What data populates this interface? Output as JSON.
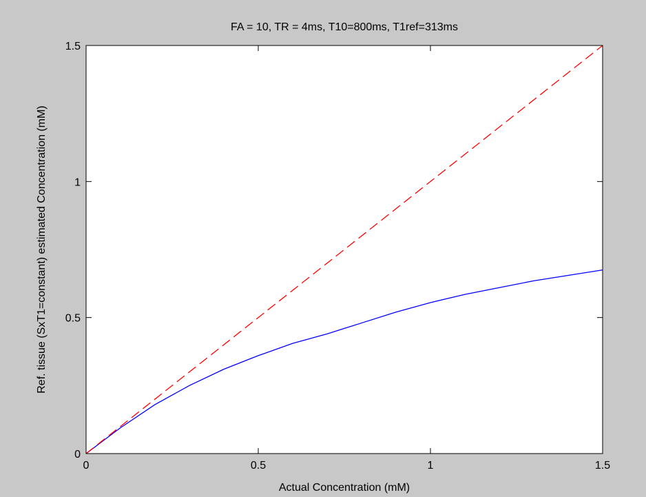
{
  "figure": {
    "background": "#c8c8c8",
    "axes_background": "#ffffff"
  },
  "chart_data": {
    "type": "line",
    "title": "FA = 10, TR = 4ms, T10=800ms, T1ref=313ms",
    "xlabel": "Actual Concentration (mM)",
    "ylabel": "Ref. tissue (SxT1=constant) estimated Concentration (mM)",
    "xlim": [
      0,
      1.5
    ],
    "ylim": [
      0,
      1.5
    ],
    "xticks": [
      0,
      0.5,
      1,
      1.5
    ],
    "xtick_labels": [
      "0",
      "0.5",
      "1",
      "1.5"
    ],
    "yticks": [
      0,
      0.5,
      1,
      1.5
    ],
    "ytick_labels": [
      "0",
      "0.5",
      "1",
      "1.5"
    ],
    "grid": false,
    "legend": "none",
    "series": [
      {
        "color": "#0000ff",
        "style": "solid",
        "x": [
          0,
          0.1,
          0.2,
          0.3,
          0.4,
          0.5,
          0.6,
          0.7,
          0.8,
          0.9,
          1.0,
          1.1,
          1.2,
          1.3,
          1.4,
          1.5
        ],
        "y": [
          0,
          0.095,
          0.18,
          0.25,
          0.31,
          0.36,
          0.405,
          0.44,
          0.48,
          0.52,
          0.555,
          0.585,
          0.61,
          0.635,
          0.655,
          0.675
        ]
      },
      {
        "color": "#ff0000",
        "style": "dashed",
        "x": [
          0,
          1.5
        ],
        "y": [
          0,
          1.5
        ]
      }
    ]
  }
}
